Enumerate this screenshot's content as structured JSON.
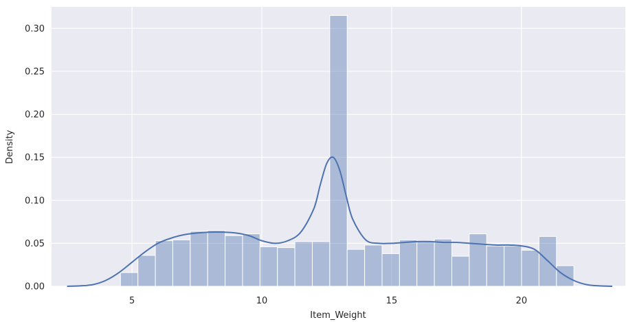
{
  "chart_data": {
    "type": "bar",
    "subtype": "histogram-with-kde",
    "title": "",
    "xlabel": "Item_Weight",
    "ylabel": "Density",
    "xlim": [
      1.9,
      24.0
    ],
    "ylim": [
      0,
      0.325
    ],
    "xticks": [
      5,
      10,
      15,
      20
    ],
    "yticks": [
      0.0,
      0.05,
      0.1,
      0.15,
      0.2,
      0.25,
      0.3
    ],
    "ytick_labels": [
      "0.00",
      "0.05",
      "0.10",
      "0.15",
      "0.20",
      "0.25",
      "0.30"
    ],
    "xtick_labels": [
      "5",
      "10",
      "15",
      "20"
    ],
    "grid": true,
    "background": "#eaeaf2",
    "bar_color": "#4c72b0",
    "bar_alpha": 0.4,
    "line_color": "#4c72b0",
    "bins": {
      "start": 4.555,
      "width": 0.6717,
      "values": [
        0.016,
        0.036,
        0.053,
        0.054,
        0.064,
        0.065,
        0.059,
        0.061,
        0.046,
        0.045,
        0.052,
        0.052,
        0.315,
        0.043,
        0.048,
        0.038,
        0.054,
        0.052,
        0.055,
        0.035,
        0.061,
        0.047,
        0.047,
        0.042,
        0.058,
        0.024
      ]
    },
    "kde": {
      "x": [
        2.5,
        3.0,
        3.5,
        4.0,
        4.5,
        5.0,
        5.5,
        6.0,
        6.5,
        7.0,
        7.5,
        8.0,
        8.5,
        9.0,
        9.5,
        10.0,
        10.5,
        11.0,
        11.5,
        12.0,
        12.25,
        12.5,
        12.75,
        13.0,
        13.25,
        13.5,
        14.0,
        14.5,
        15.0,
        15.5,
        16.0,
        16.5,
        17.0,
        17.5,
        18.0,
        18.5,
        19.0,
        19.5,
        20.0,
        20.5,
        21.0,
        21.5,
        22.0,
        22.5,
        23.0,
        23.5
      ],
      "y": [
        0.0,
        0.0005,
        0.002,
        0.007,
        0.016,
        0.028,
        0.04,
        0.05,
        0.056,
        0.06,
        0.062,
        0.063,
        0.063,
        0.062,
        0.059,
        0.053,
        0.05,
        0.053,
        0.063,
        0.09,
        0.118,
        0.143,
        0.15,
        0.135,
        0.105,
        0.078,
        0.054,
        0.05,
        0.05,
        0.051,
        0.052,
        0.052,
        0.051,
        0.051,
        0.05,
        0.049,
        0.048,
        0.048,
        0.047,
        0.043,
        0.03,
        0.016,
        0.007,
        0.002,
        0.0005,
        0.0
      ]
    }
  }
}
